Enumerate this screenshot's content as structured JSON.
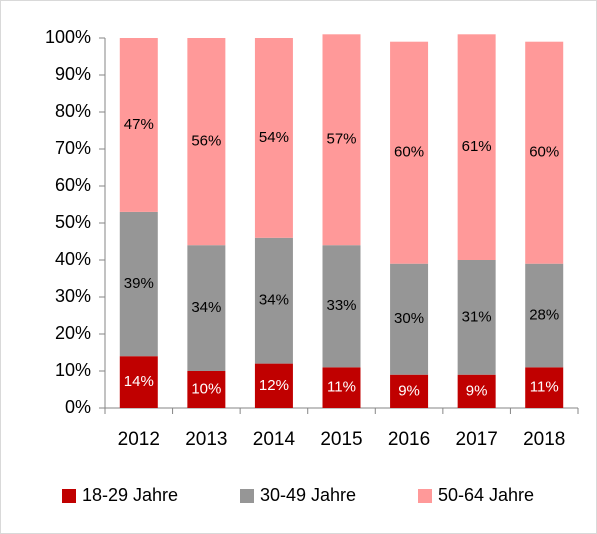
{
  "chart_data": {
    "type": "stacked_bar",
    "categories": [
      "2012",
      "2013",
      "2014",
      "2015",
      "2016",
      "2017",
      "2018"
    ],
    "series": [
      {
        "name": "18-29 Jahre",
        "color": "#c00000",
        "values": [
          14,
          10,
          12,
          11,
          9,
          9,
          11
        ],
        "value_labels": [
          "14%",
          "10%",
          "12%",
          "11%",
          "9%",
          "9%",
          "11%"
        ]
      },
      {
        "name": "30-49 Jahre",
        "color": "#969696",
        "values": [
          39,
          34,
          34,
          33,
          30,
          31,
          28
        ],
        "value_labels": [
          "39%",
          "34%",
          "34%",
          "33%",
          "30%",
          "31%",
          "28%"
        ]
      },
      {
        "name": "50-64 Jahre",
        "color": "#ff9999",
        "values": [
          47,
          56,
          54,
          57,
          60,
          61,
          60
        ],
        "value_labels": [
          "47%",
          "56%",
          "54%",
          "57%",
          "60%",
          "61%",
          "60%"
        ]
      }
    ],
    "ylim": [
      0,
      100
    ],
    "yticks": [
      {
        "value": 0,
        "label": "0%"
      },
      {
        "value": 10,
        "label": "10%"
      },
      {
        "value": 20,
        "label": "20%"
      },
      {
        "value": 30,
        "label": "30%"
      },
      {
        "value": 40,
        "label": "40%"
      },
      {
        "value": 50,
        "label": "50%"
      },
      {
        "value": 60,
        "label": "60%"
      },
      {
        "value": 70,
        "label": "70%"
      },
      {
        "value": 80,
        "label": "80%"
      },
      {
        "value": 90,
        "label": "90%"
      },
      {
        "value": 100,
        "label": "100%"
      }
    ],
    "legend": "bottom"
  }
}
